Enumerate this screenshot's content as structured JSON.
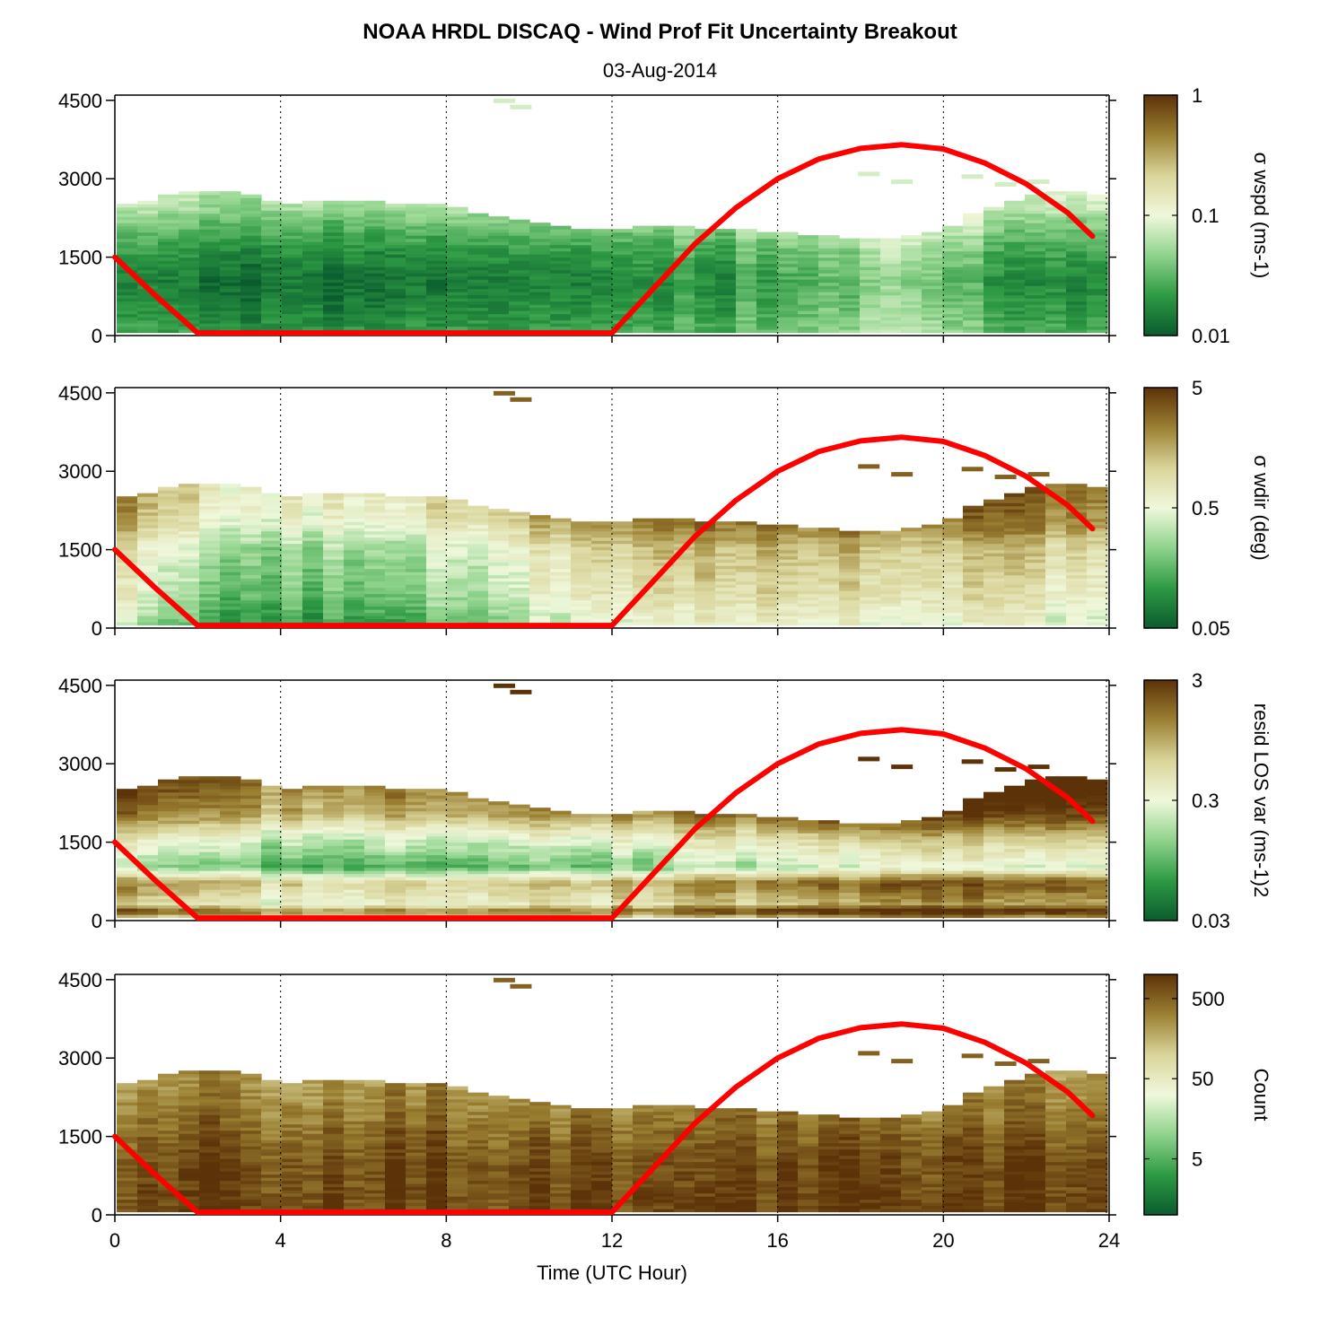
{
  "title": "NOAA HRDL DISCAQ - Wind Prof Fit Uncertainty Breakout",
  "subtitle": "03-Aug-2014",
  "chart_data": {
    "type": "heatmap",
    "xlabel": "Time (UTC Hour)",
    "xlim": [
      0,
      24
    ],
    "xticks": [
      0,
      4,
      8,
      12,
      16,
      20,
      24
    ],
    "xtick_labels": [
      "0",
      "4",
      "8",
      "12",
      "16",
      "20",
      "24"
    ],
    "ylim": [
      0,
      4600
    ],
    "yticks": [
      0,
      1500,
      3000,
      4500
    ],
    "ytick_labels": [
      "0",
      "1500",
      "3000",
      "4500"
    ],
    "grid": "vertical dotted at 4-hour ticks",
    "colormap": [
      "#0a5c2e",
      "#2e9a44",
      "#8fd38c",
      "#f0f8dc",
      "#d9d49a",
      "#9b8032",
      "#5c3208"
    ],
    "overlay_color": "#ff0000",
    "overlay_curve": {
      "x": [
        0,
        1,
        2,
        3,
        4,
        6,
        8,
        10,
        12,
        13,
        14,
        15,
        16,
        17,
        18,
        19,
        20,
        21,
        22,
        23,
        23.6
      ],
      "y": [
        1500,
        750,
        50,
        50,
        50,
        50,
        50,
        50,
        50,
        900,
        1750,
        2450,
        3000,
        3380,
        3580,
        3650,
        3570,
        3300,
        2900,
        2350,
        1900
      ]
    },
    "data_extent": {
      "x": [
        0,
        1,
        2,
        3,
        4,
        5,
        6,
        7,
        8,
        9,
        10,
        11,
        12,
        13,
        14,
        15,
        16,
        17,
        18,
        19,
        20,
        21,
        22,
        23,
        23.5
      ],
      "top_height": [
        2450,
        2600,
        2780,
        2700,
        2500,
        2550,
        2560,
        2500,
        2450,
        2300,
        2180,
        2050,
        2000,
        2080,
        2050,
        2000,
        1950,
        1880,
        1800,
        1850,
        2000,
        2400,
        2600,
        2800,
        2650
      ],
      "sparse_points": [
        {
          "x": 9.4,
          "y": 4500
        },
        {
          "x": 9.8,
          "y": 4380
        },
        {
          "x": 18.2,
          "y": 3100
        },
        {
          "x": 19.0,
          "y": 2950
        },
        {
          "x": 20.7,
          "y": 3050
        },
        {
          "x": 21.5,
          "y": 2900
        },
        {
          "x": 22.3,
          "y": 2950
        }
      ]
    },
    "panels": [
      {
        "colorbar_label": "σ wspd (ms-1)",
        "colorbar_ticks": [
          "1",
          "0.1",
          "0.01"
        ],
        "colorbar_scale": "log",
        "clim": [
          0.01,
          1
        ],
        "profile": {
          "height": [
            0,
            500,
            1000,
            1500,
            2000,
            2500
          ],
          "intensity": [
            0.18,
            0.12,
            0.08,
            0.14,
            0.25,
            0.4
          ]
        },
        "time_trend": {
          "x": [
            0,
            6,
            12,
            16,
            19,
            22,
            23.6
          ],
          "shift": [
            0.0,
            -0.02,
            0.02,
            0.1,
            0.25,
            0.05,
            0.0
          ]
        }
      },
      {
        "colorbar_label": "σ wdir (deg)",
        "colorbar_ticks": [
          "5",
          "0.5",
          "0.05"
        ],
        "colorbar_scale": "log",
        "clim": [
          0.05,
          5
        ],
        "profile": {
          "height": [
            0,
            500,
            1000,
            1500,
            2000,
            2500
          ],
          "intensity": [
            0.4,
            0.5,
            0.55,
            0.6,
            0.75,
            0.8
          ]
        },
        "time_trend": {
          "x": [
            0,
            3,
            6,
            10,
            12,
            16,
            20,
            23.6
          ],
          "shift": [
            0.05,
            -0.25,
            -0.25,
            -0.05,
            0.1,
            0.15,
            0.1,
            0.05
          ]
        }
      },
      {
        "colorbar_label": "resid LOS var (ms-1)2",
        "colorbar_ticks": [
          "3",
          "0.3",
          "0.03"
        ],
        "colorbar_scale": "log",
        "clim": [
          0.03,
          3
        ],
        "profile": {
          "height": [
            0,
            150,
            300,
            700,
            1000,
            1500,
            2000,
            2500
          ],
          "intensity": [
            0.55,
            0.95,
            0.65,
            0.8,
            0.35,
            0.55,
            0.85,
            0.95
          ]
        },
        "time_trend": {
          "x": [
            0,
            4,
            8,
            12,
            16,
            20,
            23.6
          ],
          "shift": [
            0.05,
            -0.15,
            -0.1,
            -0.05,
            0.05,
            0.15,
            0.1
          ]
        }
      },
      {
        "colorbar_label": "Count",
        "colorbar_ticks": [
          "500",
          "50",
          "5"
        ],
        "colorbar_scale": "log",
        "clim": [
          1,
          1000
        ],
        "profile": {
          "height": [
            0,
            1000,
            1500,
            2000,
            2500
          ],
          "intensity": [
            0.97,
            0.95,
            0.9,
            0.85,
            0.8
          ]
        },
        "time_trend": {
          "x": [
            0,
            12,
            23.6
          ],
          "shift": [
            0.0,
            0.0,
            0.0
          ]
        }
      }
    ]
  }
}
